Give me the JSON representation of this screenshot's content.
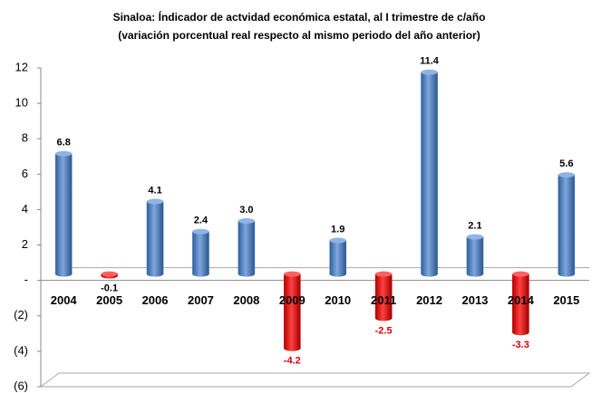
{
  "chart_data": {
    "type": "bar",
    "title": "Sinaloa: Índicador de actvidad económica estatal, al I trimestre de c/año",
    "subtitle": "(variación porcentual real respecto al mismo periodo del año anterior)",
    "categories": [
      "2004",
      "2005",
      "2006",
      "2007",
      "2008",
      "2009",
      "2010",
      "2011",
      "2012",
      "2013",
      "2014",
      "2015"
    ],
    "values": [
      6.8,
      -0.1,
      4.1,
      2.4,
      3.0,
      -4.2,
      1.9,
      -2.5,
      11.4,
      2.1,
      -3.3,
      5.6
    ],
    "value_labels": [
      "6.8",
      "-0.1",
      "4.1",
      "2.4",
      "3.0",
      "-4.2",
      "1.9",
      "-2.5",
      "11.4",
      "2.1",
      "-3.3",
      "5.6"
    ],
    "color": "#4a7ebb",
    "negative_color": "#e00000",
    "ylim": [
      -6,
      12
    ],
    "yticks": [
      {
        "value": -6,
        "label": "(6)"
      },
      {
        "value": -4,
        "label": "(4)"
      },
      {
        "value": -2,
        "label": "(2)"
      },
      {
        "value": 0,
        "label": "-"
      },
      2,
      4,
      6,
      8,
      10,
      12
    ]
  }
}
